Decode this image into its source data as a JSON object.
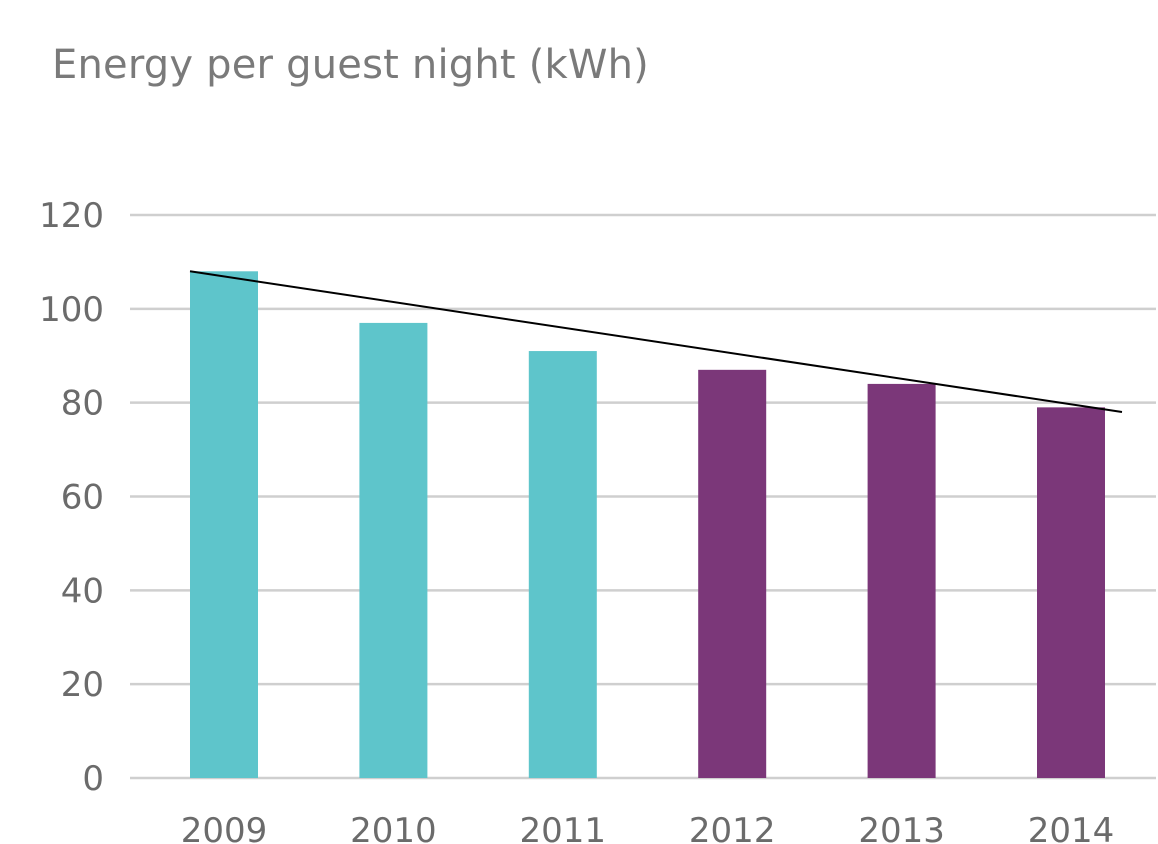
{
  "chart_data": {
    "type": "bar",
    "title": "Energy per guest night (kWh)",
    "categories": [
      "2009",
      "2010",
      "2011",
      "2012",
      "2013",
      "2014"
    ],
    "values": [
      108,
      97,
      91,
      87,
      84,
      79
    ],
    "bar_colors": [
      "#5ec5cb",
      "#5ec5cb",
      "#5ec5cb",
      "#7b3779",
      "#7b3779",
      "#7b3779"
    ],
    "y_ticks": [
      "0",
      "20",
      "40",
      "60",
      "80",
      "100",
      "120"
    ],
    "ylim": [
      0,
      120
    ],
    "grid": true,
    "trendline": {
      "start": 108,
      "end": 78,
      "color": "#000000"
    },
    "gridline_color": "#cfcfcf"
  }
}
